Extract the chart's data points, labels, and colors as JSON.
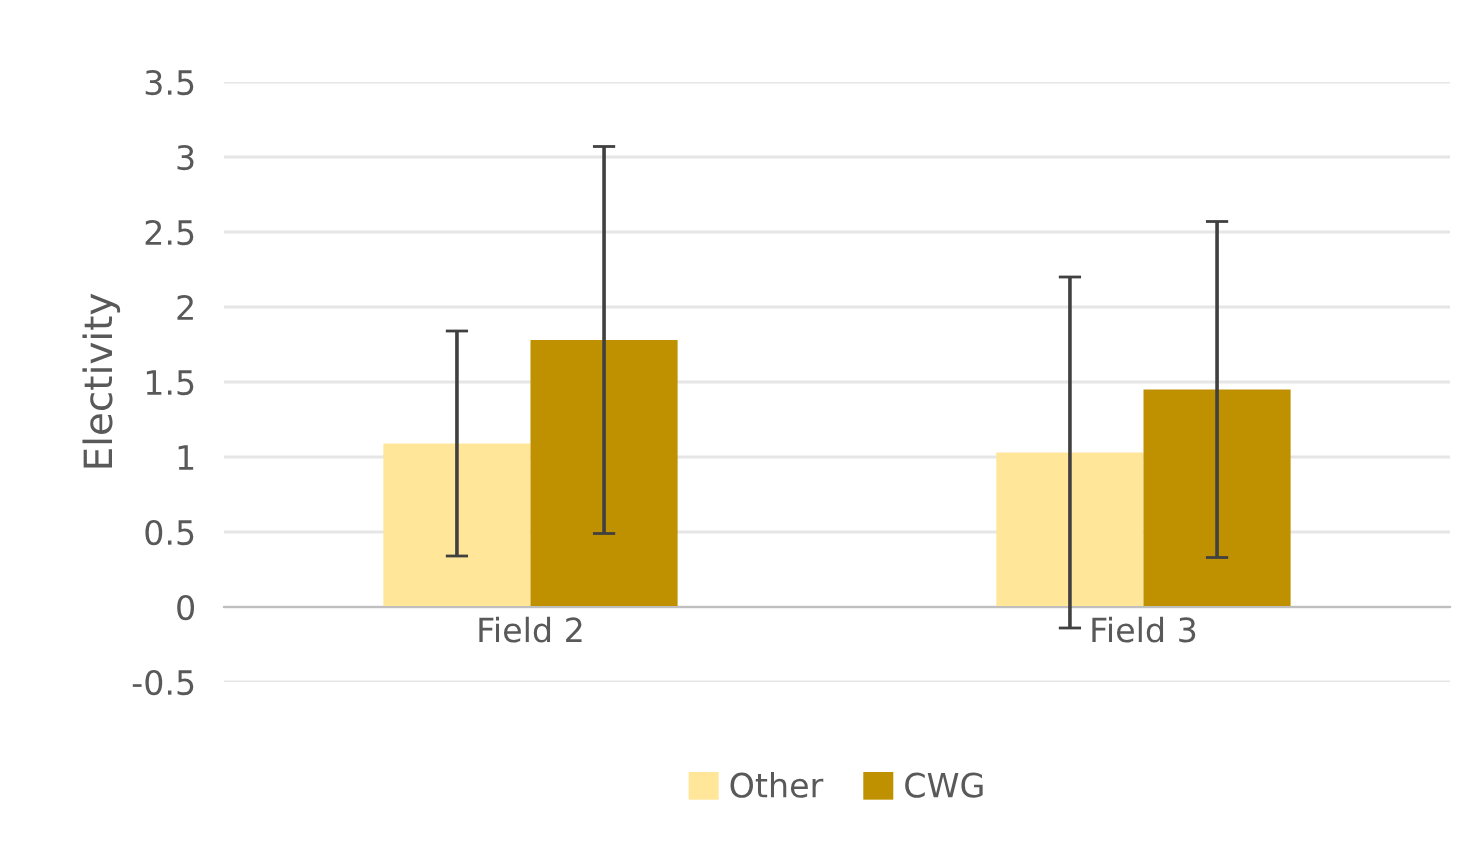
{
  "chart_data": {
    "type": "bar",
    "ylabel": "Electivity",
    "categories": [
      "Field 2",
      "Field 3"
    ],
    "series": [
      {
        "name": "Other",
        "color": "#ffe699",
        "values": [
          1.09,
          1.03
        ],
        "errors": [
          0.75,
          1.17
        ]
      },
      {
        "name": "CWG",
        "color": "#bf9000",
        "values": [
          1.78,
          1.45
        ],
        "errors": [
          1.29,
          1.12
        ]
      }
    ],
    "ylim": [
      -0.5,
      3.5
    ],
    "yticks": [
      -0.5,
      0,
      0.5,
      1,
      1.5,
      2,
      2.5,
      3,
      3.5
    ],
    "grid": "y",
    "legend": "bottom"
  }
}
